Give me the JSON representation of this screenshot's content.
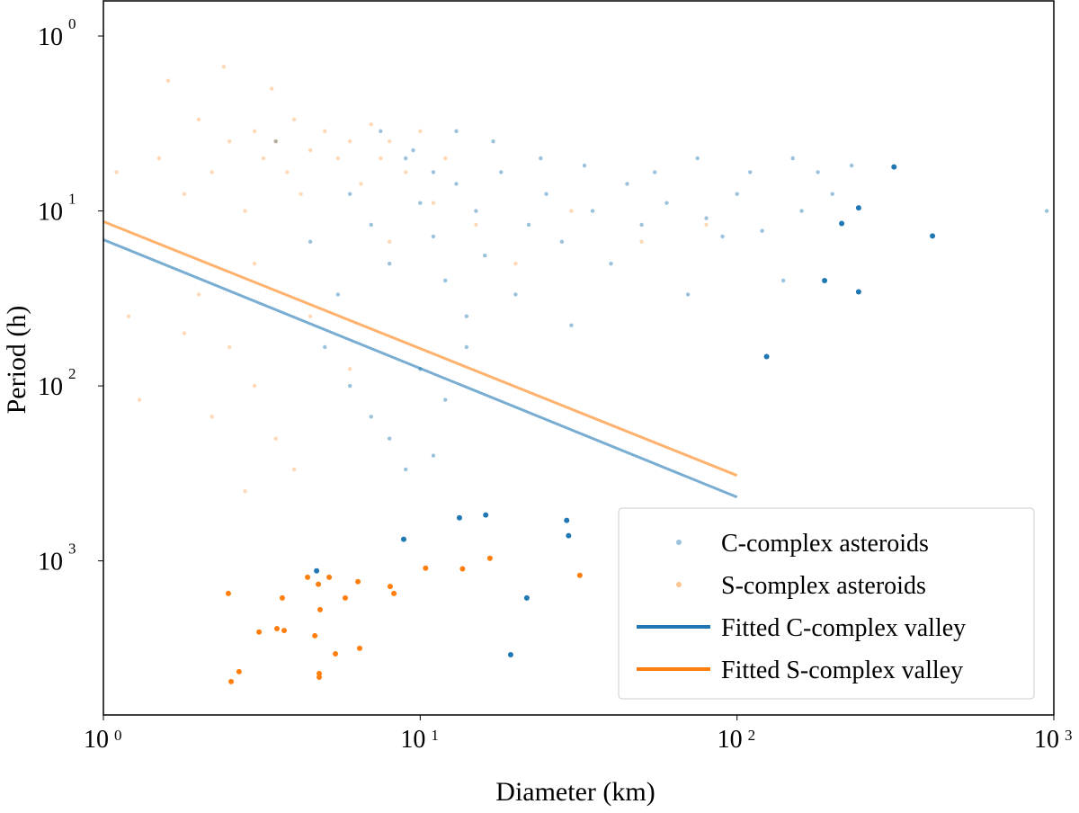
{
  "chart_data": {
    "type": "scatter",
    "xlabel": "Diameter (km)",
    "ylabel": "Period (h)",
    "xscale": "log",
    "yscale": "log",
    "y_inverted": true,
    "xlim": [
      1,
      1000
    ],
    "ylim": [
      0.63,
      7600
    ],
    "x_ticks": [
      {
        "base": "10",
        "exp": "0",
        "value": 1
      },
      {
        "base": "10",
        "exp": "1",
        "value": 10
      },
      {
        "base": "10",
        "exp": "2",
        "value": 100
      },
      {
        "base": "10",
        "exp": "3",
        "value": 1000
      }
    ],
    "y_ticks": [
      {
        "base": "10",
        "exp": "0",
        "value": 1
      },
      {
        "base": "10",
        "exp": "1",
        "value": 10
      },
      {
        "base": "10",
        "exp": "2",
        "value": 100
      },
      {
        "base": "10",
        "exp": "3",
        "value": 1000
      }
    ],
    "grid": false,
    "legend_position": "bottom-right",
    "colors": {
      "c": "#1f77b4",
      "s": "#ff7f0e"
    },
    "series": [
      {
        "name": "C-complex asteroids",
        "kind": "scatter",
        "color": "#1f77b4",
        "alpha": 0.45,
        "points": [
          [
            6,
            8
          ],
          [
            7,
            12
          ],
          [
            8,
            20
          ],
          [
            9,
            5
          ],
          [
            10,
            9
          ],
          [
            11,
            14
          ],
          [
            12,
            25
          ],
          [
            13,
            7
          ],
          [
            14,
            40
          ],
          [
            15,
            10
          ],
          [
            16,
            18
          ],
          [
            18,
            6
          ],
          [
            20,
            30
          ],
          [
            22,
            12
          ],
          [
            25,
            8
          ],
          [
            28,
            15
          ],
          [
            30,
            45
          ],
          [
            35,
            10
          ],
          [
            40,
            20
          ],
          [
            45,
            7
          ],
          [
            50,
            12
          ],
          [
            60,
            9
          ],
          [
            70,
            30
          ],
          [
            80,
            11
          ],
          [
            90,
            14
          ],
          [
            100,
            8
          ],
          [
            120,
            13
          ],
          [
            140,
            25
          ],
          [
            160,
            10
          ],
          [
            180,
            6
          ],
          [
            200,
            8
          ],
          [
            5,
            60
          ],
          [
            6,
            100
          ],
          [
            7,
            150
          ],
          [
            8,
            200
          ],
          [
            9,
            300
          ],
          [
            10,
            80
          ],
          [
            11,
            250
          ],
          [
            12,
            120
          ],
          [
            14,
            60
          ],
          [
            5.5,
            30
          ],
          [
            4.5,
            15
          ],
          [
            3.5,
            4
          ],
          [
            7.5,
            3.5
          ],
          [
            9.5,
            4.5
          ],
          [
            11,
            6
          ],
          [
            13,
            3.5
          ],
          [
            17,
            4
          ],
          [
            24,
            5
          ],
          [
            33,
            5.5
          ],
          [
            55,
            6
          ],
          [
            75,
            5
          ],
          [
            110,
            6
          ],
          [
            150,
            5
          ],
          [
            230,
            5.5
          ],
          [
            950,
            10
          ]
        ]
      },
      {
        "name": "S-complex asteroids",
        "kind": "scatter",
        "color": "#ff7f0e",
        "alpha": 0.3,
        "points": [
          [
            1.5,
            5
          ],
          [
            1.8,
            8
          ],
          [
            2,
            3
          ],
          [
            2.2,
            6
          ],
          [
            2.5,
            4
          ],
          [
            2.8,
            10
          ],
          [
            3,
            3.5
          ],
          [
            3.2,
            5
          ],
          [
            3.5,
            4
          ],
          [
            3.8,
            6
          ],
          [
            4,
            3
          ],
          [
            4.2,
            8
          ],
          [
            4.5,
            4.5
          ],
          [
            5,
            3.5
          ],
          [
            5.5,
            5
          ],
          [
            6,
            4
          ],
          [
            6.5,
            7
          ],
          [
            7,
            3.2
          ],
          [
            7.5,
            5
          ],
          [
            8,
            4
          ],
          [
            9,
            6
          ],
          [
            10,
            3.5
          ],
          [
            11,
            9
          ],
          [
            12,
            5
          ],
          [
            2,
            30
          ],
          [
            2.5,
            60
          ],
          [
            3,
            100
          ],
          [
            3.5,
            200
          ],
          [
            4,
            300
          ],
          [
            2.2,
            150
          ],
          [
            2.8,
            400
          ],
          [
            1.3,
            120
          ],
          [
            1.8,
            50
          ],
          [
            3,
            20
          ],
          [
            4.5,
            40
          ],
          [
            6,
            80
          ],
          [
            8,
            15
          ],
          [
            15,
            12
          ],
          [
            20,
            20
          ],
          [
            30,
            10
          ],
          [
            50,
            15
          ],
          [
            80,
            12
          ],
          [
            1.6,
            1.8
          ],
          [
            2.4,
            1.5
          ],
          [
            3.4,
            2
          ],
          [
            1.1,
            6
          ],
          [
            1.2,
            40
          ]
        ]
      },
      {
        "name": "C-complex asteroids",
        "kind": "highlight",
        "color": "#1f77b4",
        "points": [
          [
            4.71,
            1140
          ],
          [
            8.87,
            753
          ],
          [
            13.3,
            567
          ],
          [
            16.1,
            547
          ],
          [
            29.0,
            587
          ],
          [
            29.4,
            718
          ],
          [
            21.7,
            1630
          ],
          [
            19.3,
            3440
          ],
          [
            124,
            68
          ],
          [
            189,
            25
          ],
          [
            242,
            29
          ],
          [
            214,
            11.8
          ],
          [
            242,
            9.6
          ],
          [
            313,
            5.6
          ],
          [
            414,
            13.9
          ]
        ]
      },
      {
        "name": "S-complex asteroids",
        "kind": "highlight",
        "color": "#ff7f0e",
        "points": [
          [
            2.48,
            1535
          ],
          [
            2.68,
            4300
          ],
          [
            2.53,
            4900
          ],
          [
            3.1,
            2550
          ],
          [
            3.53,
            2440
          ],
          [
            3.72,
            2500
          ],
          [
            3.67,
            1630
          ],
          [
            4.41,
            1240
          ],
          [
            4.65,
            2680
          ],
          [
            4.77,
            1360
          ],
          [
            4.83,
            1900
          ],
          [
            4.8,
            4400
          ],
          [
            4.8,
            4620
          ],
          [
            5.16,
            1240
          ],
          [
            5.4,
            3400
          ],
          [
            5.8,
            1630
          ],
          [
            6.36,
            1315
          ],
          [
            6.44,
            3160
          ],
          [
            8.04,
            1400
          ],
          [
            8.26,
            1535
          ],
          [
            10.4,
            1100
          ],
          [
            13.6,
            1110
          ],
          [
            16.6,
            966
          ],
          [
            31.9,
            1210
          ]
        ]
      },
      {
        "name": "Fitted C-complex valley",
        "kind": "line",
        "color": "#1f77b4",
        "x": [
          1,
          100
        ],
        "y": [
          14.6,
          432
        ]
      },
      {
        "name": "Fitted S-complex valley",
        "kind": "line",
        "color": "#ff7f0e",
        "x": [
          1,
          100
        ],
        "y": [
          11.5,
          325
        ]
      }
    ],
    "legend": [
      {
        "label": "C-complex asteroids",
        "marker": "dot",
        "color": "#1f77b4"
      },
      {
        "label": "S-complex asteroids",
        "marker": "dot",
        "color": "#ff7f0e"
      },
      {
        "label": "Fitted C-complex valley",
        "marker": "line",
        "color": "#1f77b4"
      },
      {
        "label": "Fitted S-complex valley",
        "marker": "line",
        "color": "#ff7f0e"
      }
    ]
  }
}
